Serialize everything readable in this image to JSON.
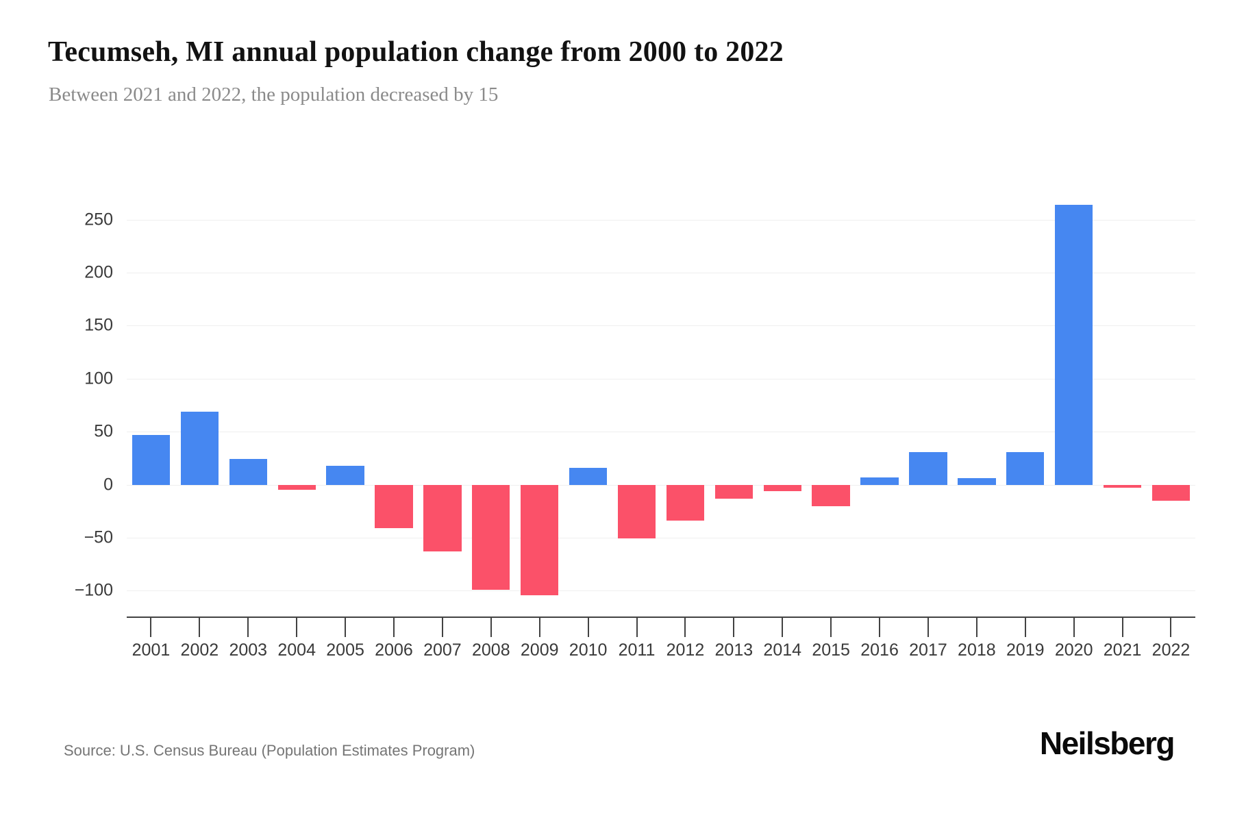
{
  "header": {
    "title": "Tecumseh, MI annual population change from 2000 to 2022",
    "subtitle": "Between 2021 and 2022, the population decreased by 15"
  },
  "footer": {
    "source": "Source: U.S. Census Bureau (Population Estimates Program)",
    "brand": "Neilsberg"
  },
  "chart_data": {
    "type": "bar",
    "title": "Tecumseh, MI annual population change from 2000 to 2022",
    "subtitle": "Between 2021 and 2022, the population decreased by 15",
    "categories": [
      "2001",
      "2002",
      "2003",
      "2004",
      "2005",
      "2006",
      "2007",
      "2008",
      "2009",
      "2010",
      "2011",
      "2012",
      "2013",
      "2014",
      "2015",
      "2016",
      "2017",
      "2018",
      "2019",
      "2020",
      "2021",
      "2022"
    ],
    "values": [
      47,
      69,
      24,
      -5,
      18,
      -41,
      -63,
      -99,
      -104,
      16,
      -51,
      -34,
      -13,
      -6,
      -20,
      7,
      31,
      6,
      31,
      264,
      -3,
      -15
    ],
    "xlabel": "",
    "ylabel": "",
    "ylim": [
      -125,
      275
    ],
    "yticks": [
      250,
      200,
      150,
      100,
      50,
      0,
      -50,
      -100
    ],
    "ytick_labels": [
      "250",
      "200",
      "150",
      "100",
      "50",
      "0",
      "−50",
      "−100"
    ],
    "grid": true,
    "legend": false,
    "colors": {
      "positive_bar": "#4687F1",
      "negative_bar": "#FB5169",
      "gridline": "#efefef",
      "axis": "#424242",
      "tick_label": "#3a3a3a"
    }
  }
}
